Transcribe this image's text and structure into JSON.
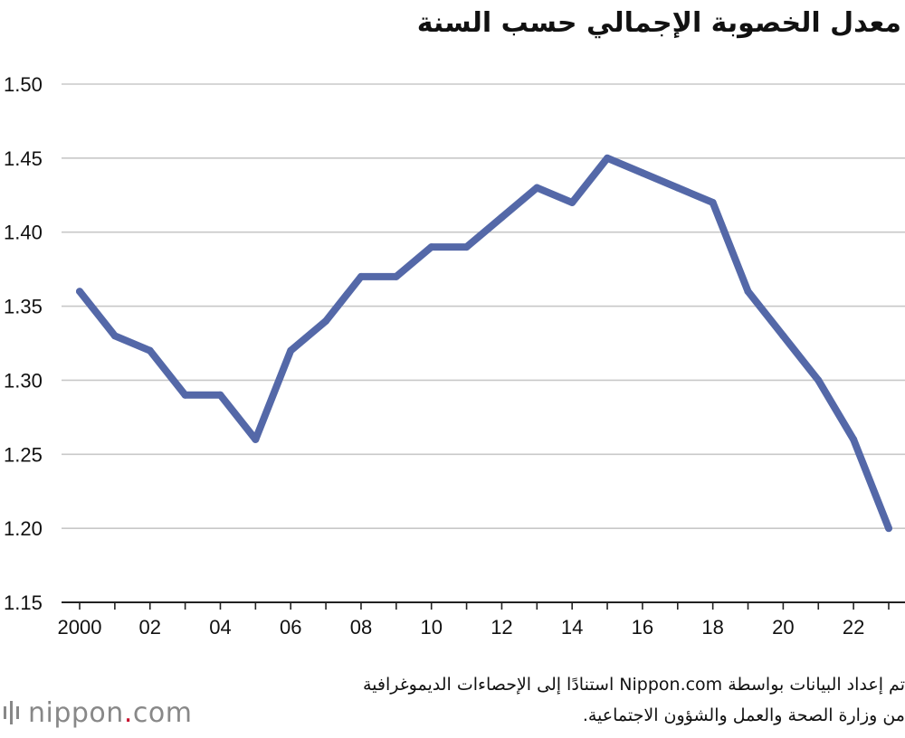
{
  "chart_data": {
    "type": "line",
    "title": "معدل الخصوبة الإجمالي حسب السنة",
    "xlabel": "",
    "ylabel": "",
    "x": [
      2000,
      2001,
      2002,
      2003,
      2004,
      2005,
      2006,
      2007,
      2008,
      2009,
      2010,
      2011,
      2012,
      2013,
      2014,
      2015,
      2016,
      2017,
      2018,
      2019,
      2020,
      2021,
      2022,
      2023
    ],
    "series": [
      {
        "values": [
          1.36,
          1.33,
          1.32,
          1.29,
          1.29,
          1.26,
          1.32,
          1.34,
          1.37,
          1.37,
          1.39,
          1.39,
          1.41,
          1.43,
          1.42,
          1.45,
          1.44,
          1.43,
          1.42,
          1.36,
          1.33,
          1.3,
          1.26,
          1.2
        ],
        "color": "#5468a8"
      }
    ],
    "xlim": [
      2000,
      2023
    ],
    "ylim": [
      1.15,
      1.5
    ],
    "y_ticks": [
      "1.15",
      "1.20",
      "1.25",
      "1.30",
      "1.35",
      "1.40",
      "1.45",
      "1.50"
    ],
    "x_tick_labels": [
      {
        "year": 2000,
        "label": "2000"
      },
      {
        "year": 2002,
        "label": "02"
      },
      {
        "year": 2004,
        "label": "04"
      },
      {
        "year": 2006,
        "label": "06"
      },
      {
        "year": 2008,
        "label": "08"
      },
      {
        "year": 2010,
        "label": "10"
      },
      {
        "year": 2012,
        "label": "12"
      },
      {
        "year": 2014,
        "label": "14"
      },
      {
        "year": 2016,
        "label": "16"
      },
      {
        "year": 2018,
        "label": "18"
      },
      {
        "year": 2020,
        "label": "20"
      },
      {
        "year": 2022,
        "label": "22"
      }
    ],
    "grid": true,
    "legend": "none"
  },
  "source": {
    "line1": "تم إعداد البيانات بواسطة Nippon.com استنادًا إلى الإحصاءات الديموغرافية",
    "line2": "من وزارة الصحة والعمل والشؤون الاجتماعية."
  },
  "logo": {
    "text_before": "nippon",
    "dot": ".",
    "text_after": "com"
  },
  "colors": {
    "line": "#5468a8",
    "grid": "#c8c8c8",
    "axis": "#222222",
    "logo": "#888888",
    "logo_dot": "#c8102e"
  }
}
